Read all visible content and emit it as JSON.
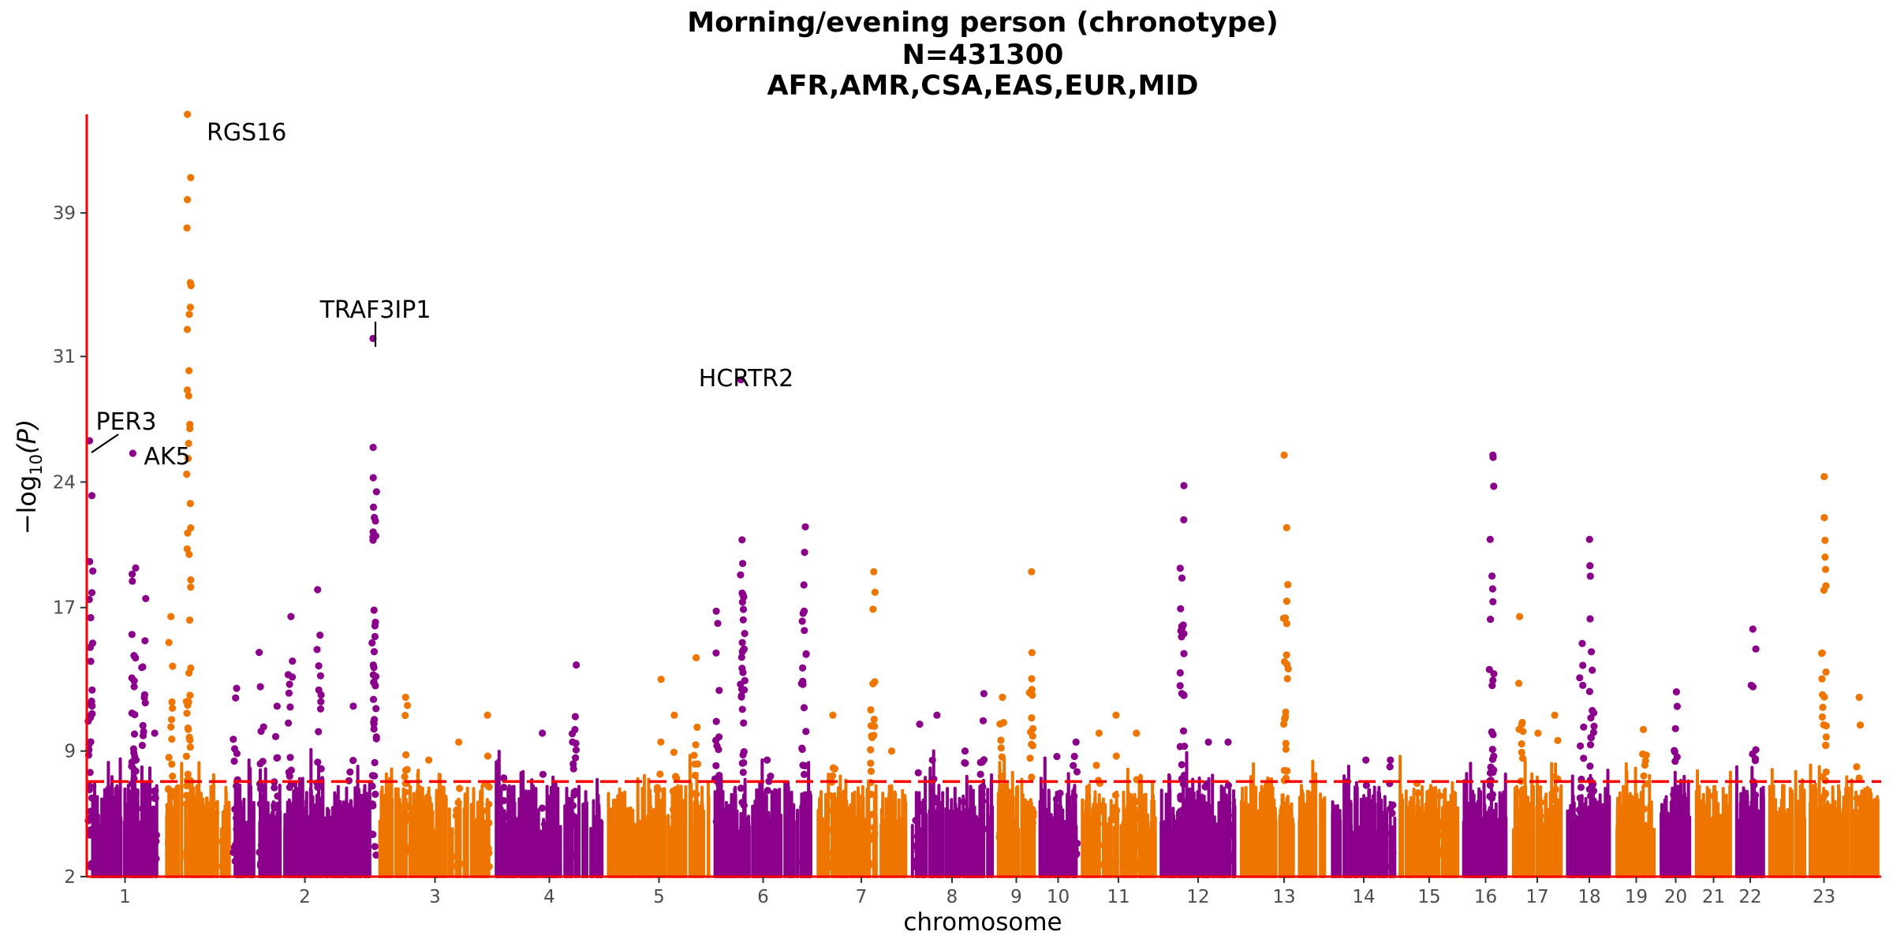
{
  "chart_data": {
    "type": "scatter",
    "subtype": "manhattan",
    "title": [
      "Morning/evening person (chronotype)",
      "N=431300",
      "AFR,AMR,CSA,EAS,EUR,MID"
    ],
    "xlabel": "chromosome",
    "ylabel_parts": [
      "−log",
      "10",
      "(P)"
    ],
    "y_ticks": [
      2,
      9,
      17,
      24,
      31,
      39
    ],
    "ylim": [
      2,
      44.5
    ],
    "threshold": 7.3,
    "colors": {
      "odd": "#8B008B",
      "even": "#EE7600",
      "axis": "#FF0000",
      "threshold": "#FF0000"
    },
    "chromosomes": [
      {
        "label": "1",
        "peaks": [
          [
            0.03,
            26.3
          ],
          [
            0.62,
            25.6
          ],
          [
            0.76,
            17.5
          ],
          [
            0.9,
            10
          ]
        ]
      },
      {
        "label": "",
        "peaks": [
          [
            0.12,
            16.5
          ],
          [
            0.38,
            44.8
          ],
          [
            0.75,
            6
          ]
        ]
      },
      {
        "label": "2",
        "peaks": [
          [
            0.02,
            12.5
          ],
          [
            0.2,
            14.5
          ],
          [
            0.3,
            11.5
          ],
          [
            0.4,
            16.5
          ],
          [
            0.6,
            18
          ],
          [
            0.82,
            11.5
          ],
          [
            0.98,
            32
          ]
        ]
      },
      {
        "label": "3",
        "peaks": [
          [
            0.25,
            12
          ],
          [
            0.45,
            8.5
          ],
          [
            0.7,
            9.5
          ],
          [
            0.95,
            11
          ]
        ]
      },
      {
        "label": "4",
        "peaks": [
          [
            0.1,
            7.5
          ],
          [
            0.45,
            10
          ],
          [
            0.72,
            13.8
          ]
        ]
      },
      {
        "label": "5",
        "peaks": [
          [
            0.5,
            13
          ],
          [
            0.65,
            11
          ],
          [
            0.85,
            14.2
          ]
        ]
      },
      {
        "label": "6",
        "peaks": [
          [
            0.05,
            16.8
          ],
          [
            0.3,
            29.7
          ],
          [
            0.55,
            8.5
          ],
          [
            0.9,
            21.5
          ]
        ]
      },
      {
        "label": "7",
        "peaks": [
          [
            0.2,
            11
          ],
          [
            0.62,
            19
          ],
          [
            0.8,
            9
          ]
        ]
      },
      {
        "label": "8",
        "peaks": [
          [
            0.1,
            10.5
          ],
          [
            0.3,
            11
          ],
          [
            0.65,
            9
          ],
          [
            0.85,
            12.2
          ]
        ]
      },
      {
        "label": "9",
        "peaks": [
          [
            0.15,
            12
          ],
          [
            0.85,
            19
          ]
        ]
      },
      {
        "label": "10",
        "peaks": [
          [
            0.5,
            8.7
          ],
          [
            0.9,
            9.5
          ]
        ]
      },
      {
        "label": "11",
        "peaks": [
          [
            0.25,
            10
          ],
          [
            0.45,
            11
          ],
          [
            0.75,
            10
          ]
        ]
      },
      {
        "label": "12",
        "peaks": [
          [
            0.3,
            23.8
          ],
          [
            0.6,
            9.5
          ],
          [
            0.9,
            9.5
          ]
        ]
      },
      {
        "label": "13",
        "peaks": [
          [
            0.52,
            25.5
          ]
        ]
      },
      {
        "label": "14",
        "peaks": [
          [
            0.55,
            8.5
          ],
          [
            0.9,
            8.5
          ]
        ]
      },
      {
        "label": "15",
        "peaks": [
          [
            0.3,
            7.2
          ],
          [
            0.7,
            6.5
          ]
        ]
      },
      {
        "label": "16",
        "peaks": [
          [
            0.62,
            25.5
          ]
        ]
      },
      {
        "label": "17",
        "peaks": [
          [
            0.2,
            16.5
          ],
          [
            0.55,
            10
          ],
          [
            0.85,
            11
          ]
        ]
      },
      {
        "label": "18",
        "peaks": [
          [
            0.55,
            20.8
          ],
          [
            0.35,
            15
          ]
        ]
      },
      {
        "label": "19",
        "peaks": [
          [
            0.7,
            10.2
          ]
        ]
      },
      {
        "label": "20",
        "peaks": [
          [
            0.5,
            12.3
          ]
        ]
      },
      {
        "label": "21",
        "peaks": [
          [
            0.55,
            6.5
          ]
        ]
      },
      {
        "label": "22",
        "peaks": [
          [
            0.6,
            15.8
          ]
        ]
      },
      {
        "label": "23",
        "peaks": [
          [
            0.5,
            24.3
          ],
          [
            0.8,
            12
          ]
        ]
      }
    ],
    "annotations": [
      {
        "gene": "RGS16"
      },
      {
        "gene": "TRAF3IP1"
      },
      {
        "gene": "HCRTR2"
      },
      {
        "gene": "PER3"
      },
      {
        "gene": "AK5"
      }
    ]
  }
}
